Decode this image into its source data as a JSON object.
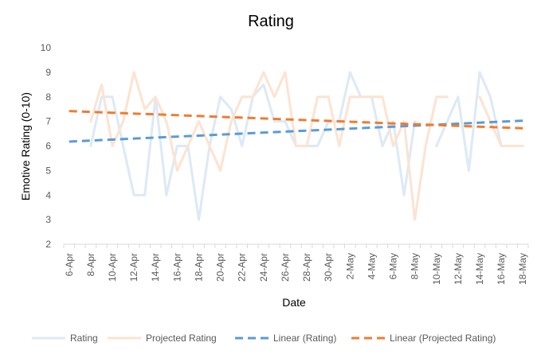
{
  "chart_data": {
    "type": "line",
    "title": "Rating",
    "xlabel": "Date",
    "ylabel": "Emotive Rating (0-10)",
    "ylim": [
      2,
      10
    ],
    "yticks": [
      2,
      3,
      4,
      5,
      6,
      7,
      8,
      9,
      10
    ],
    "grid": false,
    "legend_position": "bottom",
    "x": [
      "6-Apr",
      "7-Apr",
      "8-Apr",
      "9-Apr",
      "10-Apr",
      "11-Apr",
      "12-Apr",
      "13-Apr",
      "14-Apr",
      "15-Apr",
      "16-Apr",
      "17-Apr",
      "18-Apr",
      "19-Apr",
      "20-Apr",
      "21-Apr",
      "22-Apr",
      "23-Apr",
      "24-Apr",
      "25-Apr",
      "26-Apr",
      "27-Apr",
      "28-Apr",
      "29-Apr",
      "30-Apr",
      "1-May",
      "2-May",
      "3-May",
      "4-May",
      "5-May",
      "6-May",
      "7-May",
      "8-May",
      "9-May",
      "10-May",
      "11-May",
      "12-May",
      "13-May",
      "14-May",
      "15-May",
      "16-May",
      "17-May",
      "18-May"
    ],
    "xtick_labels": [
      "6-Apr",
      "8-Apr",
      "10-Apr",
      "12-Apr",
      "14-Apr",
      "16-Apr",
      "18-Apr",
      "20-Apr",
      "22-Apr",
      "24-Apr",
      "26-Apr",
      "28-Apr",
      "30-Apr",
      "2-May",
      "4-May",
      "6-May",
      "8-May",
      "10-May",
      "12-May",
      "14-May",
      "16-May",
      "18-May"
    ],
    "series": [
      {
        "name": "Rating",
        "color": "#dde9f6",
        "style": "solid",
        "values": [
          null,
          null,
          6,
          8,
          8,
          6,
          4,
          4,
          8,
          4,
          6,
          6,
          3,
          6,
          8,
          7.5,
          6,
          8,
          8.5,
          7,
          7,
          6,
          6,
          6,
          7,
          7,
          9,
          8,
          8,
          6,
          7,
          4,
          7,
          null,
          6,
          7,
          8,
          5,
          9,
          8,
          6,
          6,
          6
        ]
      },
      {
        "name": "Projected Rating",
        "color": "#fde3d2",
        "style": "solid",
        "values": [
          null,
          null,
          7,
          8.5,
          6,
          7,
          9,
          7.5,
          8,
          7,
          5,
          6,
          7,
          6,
          5,
          7,
          8,
          8,
          9,
          8,
          9,
          6,
          6,
          8,
          8,
          6,
          8,
          8,
          8,
          8,
          6,
          7,
          3,
          6,
          8,
          8,
          null,
          null,
          8,
          7,
          6,
          6,
          6
        ]
      },
      {
        "name": "Linear (Rating)",
        "color": "#5b9bd5",
        "style": "dashed",
        "trend_endpoints": [
          6.18,
          7.03
        ]
      },
      {
        "name": "Linear (Projected Rating)",
        "color": "#ed7d31",
        "style": "dashed",
        "trend_endpoints": [
          7.42,
          6.72
        ]
      }
    ]
  }
}
